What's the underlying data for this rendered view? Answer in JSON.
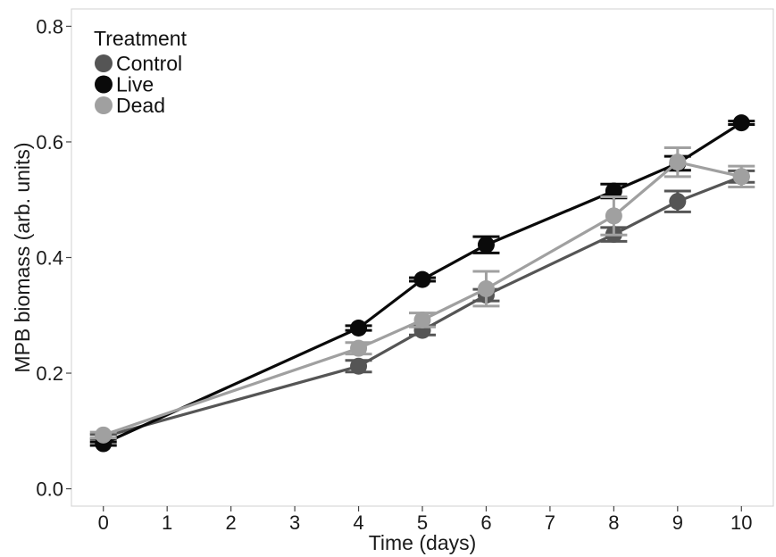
{
  "chart_data": {
    "type": "line",
    "xlabel": "Time (days)",
    "ylabel": "MPB biomass (arb. units)",
    "xlim": [
      -0.5,
      10.5
    ],
    "ylim": [
      -0.03,
      0.83
    ],
    "x_ticks": [
      0,
      1,
      2,
      3,
      4,
      5,
      6,
      7,
      8,
      9,
      10
    ],
    "y_ticks": [
      0.0,
      0.2,
      0.4,
      0.6,
      0.8
    ],
    "y_tick_labels": [
      "0.0",
      "0.2",
      "0.4",
      "0.6",
      "0.8"
    ],
    "grid": false,
    "error_bars": true,
    "legend": {
      "title": "Treatment",
      "position": "top-left"
    },
    "series": [
      {
        "name": "Control",
        "color": "#555555",
        "points": [
          {
            "x": 0,
            "y": 0.09,
            "err": 0.004
          },
          {
            "x": 4,
            "y": 0.212,
            "err": 0.01
          },
          {
            "x": 5,
            "y": 0.274,
            "err": 0.008
          },
          {
            "x": 6,
            "y": 0.335,
            "err": 0.01
          },
          {
            "x": 8,
            "y": 0.44,
            "err": 0.012
          },
          {
            "x": 9,
            "y": 0.497,
            "err": 0.018
          },
          {
            "x": 10,
            "y": 0.54,
            "err": 0.01
          }
        ]
      },
      {
        "name": "Live",
        "color": "#0a0a0a",
        "points": [
          {
            "x": 0,
            "y": 0.078,
            "err": 0.003
          },
          {
            "x": 4,
            "y": 0.278,
            "err": 0.004
          },
          {
            "x": 5,
            "y": 0.362,
            "err": 0.003
          },
          {
            "x": 6,
            "y": 0.422,
            "err": 0.014
          },
          {
            "x": 8,
            "y": 0.515,
            "err": 0.012
          },
          {
            "x": 9,
            "y": 0.563,
            "err": 0.012
          },
          {
            "x": 10,
            "y": 0.633,
            "err": 0.003
          }
        ]
      },
      {
        "name": "Dead",
        "color": "#a0a0a0",
        "points": [
          {
            "x": 0,
            "y": 0.093,
            "err": 0.005
          },
          {
            "x": 4,
            "y": 0.243,
            "err": 0.01
          },
          {
            "x": 5,
            "y": 0.292,
            "err": 0.012
          },
          {
            "x": 6,
            "y": 0.346,
            "err": 0.03
          },
          {
            "x": 8,
            "y": 0.472,
            "err": 0.033
          },
          {
            "x": 9,
            "y": 0.565,
            "err": 0.025
          },
          {
            "x": 10,
            "y": 0.54,
            "err": 0.018
          }
        ]
      }
    ]
  }
}
